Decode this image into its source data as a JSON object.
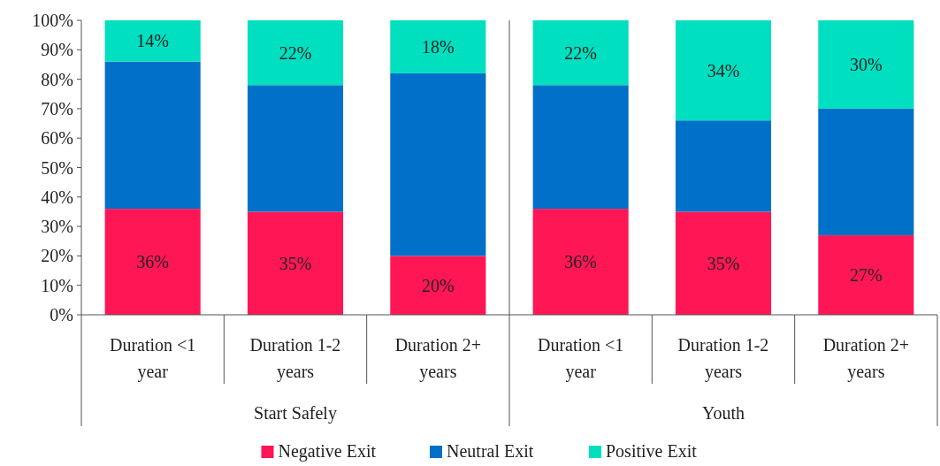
{
  "chart_data": {
    "type": "bar",
    "stacked": true,
    "categories": [
      "Duration <1 year",
      "Duration 1-2 years",
      "Duration 2+ years",
      "Duration <1 year",
      "Duration 1-2 years",
      "Duration 2+ years"
    ],
    "series": [
      {
        "name": "Negative Exit",
        "color": "#ff1654",
        "values": [
          36,
          35,
          20,
          36,
          35,
          27
        ],
        "value_labels": [
          "36%",
          "35%",
          "20%",
          "36%",
          "35%",
          "27%"
        ]
      },
      {
        "name": "Neutral Exit",
        "color": "#0070c8",
        "values": [
          50,
          43,
          62,
          42,
          31,
          43
        ]
      },
      {
        "name": "Positive Exit",
        "color": "#00dfc0",
        "values": [
          14,
          22,
          18,
          22,
          34,
          30
        ],
        "value_labels": [
          "14%",
          "22%",
          "18%",
          "22%",
          "34%",
          "30%"
        ]
      }
    ],
    "annotations": [
      "Start Safely",
      "Youth"
    ],
    "ylim": [
      0,
      100
    ],
    "yticks": [
      {
        "value": 0,
        "label": "0%"
      },
      {
        "value": 10,
        "label": "10%"
      },
      {
        "value": 20,
        "label": "20%"
      },
      {
        "value": 30,
        "label": "30%"
      },
      {
        "value": 40,
        "label": "40%"
      },
      {
        "value": 50,
        "label": "50%"
      },
      {
        "value": 60,
        "label": "60%"
      },
      {
        "value": 70,
        "label": "70%"
      },
      {
        "value": 80,
        "label": "80%"
      },
      {
        "value": 90,
        "label": "90%"
      },
      {
        "value": 100,
        "label": "100%"
      }
    ],
    "grid": false,
    "legend": "bottom"
  }
}
